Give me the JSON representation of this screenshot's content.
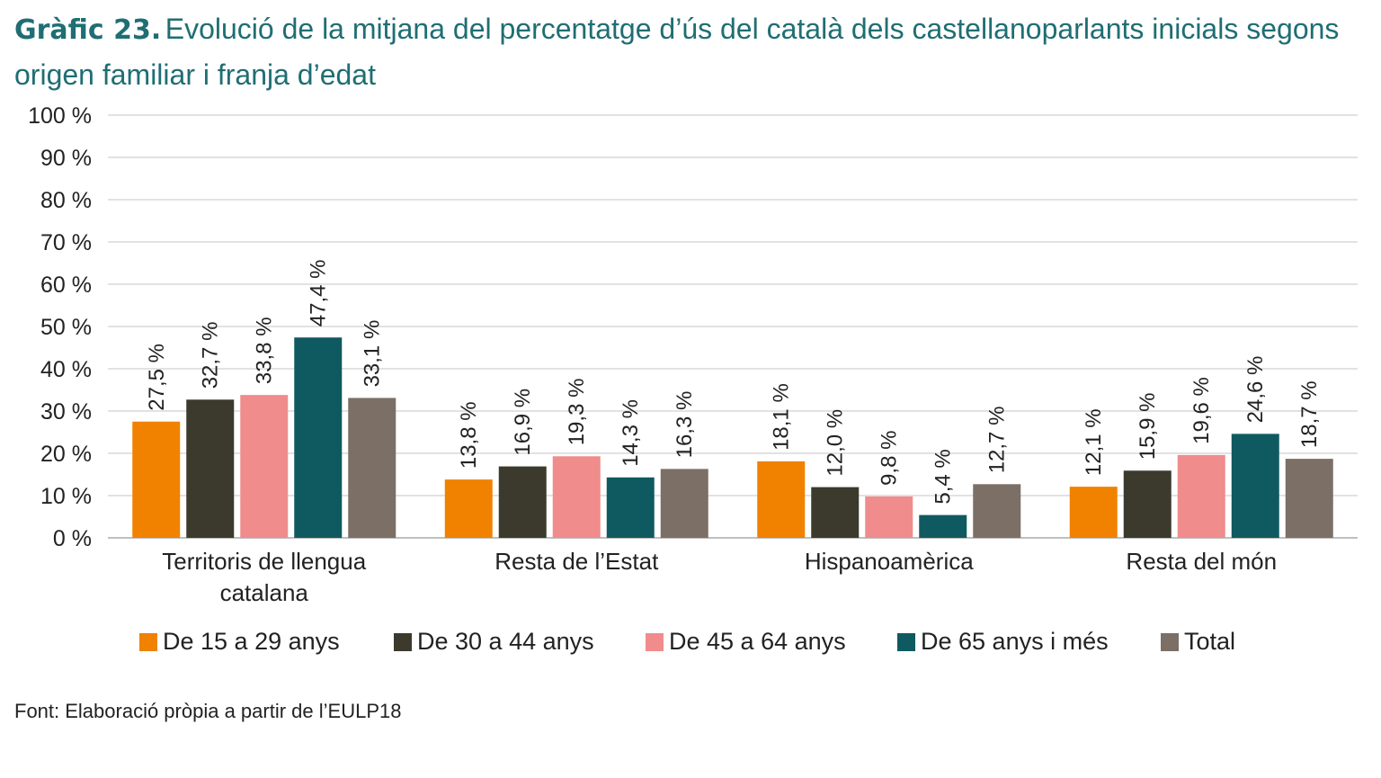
{
  "title": {
    "prefix": "Gràfic 23.",
    "text": "Evolució de la mitjana del percentatge d’ús del català dels castellanoparlants inicials segons origen familiar i franja d’edat"
  },
  "source": "Font: Elaboració pròpia a partir de l’EULP18",
  "chart_data": {
    "type": "bar",
    "categories": [
      [
        "Territoris de llengua",
        "catalana"
      ],
      [
        "Resta de l’Estat"
      ],
      [
        "Hispanoamèrica"
      ],
      [
        "Resta del món"
      ]
    ],
    "series": [
      {
        "name": "De 15 a 29 anys",
        "color": "#f08200",
        "values": [
          27.5,
          13.8,
          18.1,
          12.1
        ],
        "labels": [
          "27,5 %",
          "13,8 %",
          "18,1 %",
          "12,1 %"
        ]
      },
      {
        "name": "De 30 a 44 anys",
        "color": "#3c3a2c",
        "values": [
          32.7,
          16.9,
          12.0,
          15.9
        ],
        "labels": [
          "32,7 %",
          "16,9 %",
          "12,0 %",
          "15,9 %"
        ]
      },
      {
        "name": "De 45 a 64 anys",
        "color": "#f08c8c",
        "values": [
          33.8,
          19.3,
          9.8,
          19.6
        ],
        "labels": [
          "33,8 %",
          "19,3 %",
          "9,8 %",
          "19,6 %"
        ]
      },
      {
        "name": "De 65 anys i més",
        "color": "#0f5a60",
        "values": [
          47.4,
          14.3,
          5.4,
          24.6
        ],
        "labels": [
          "47,4 %",
          "14,3 %",
          "5,4 %",
          "24,6 %"
        ]
      },
      {
        "name": "Total",
        "color": "#7b6f66",
        "values": [
          33.1,
          16.3,
          12.7,
          18.7
        ],
        "labels": [
          "33,1 %",
          "16,3 %",
          "12,7 %",
          "18,7 %"
        ]
      }
    ],
    "ylim": [
      0,
      100
    ],
    "yticks": [
      0,
      10,
      20,
      30,
      40,
      50,
      60,
      70,
      80,
      90,
      100
    ],
    "ytick_labels": [
      "0 %",
      "10 %",
      "20 %",
      "30 %",
      "40 %",
      "50 %",
      "60 %",
      "70 %",
      "80 %",
      "90 %",
      "100 %"
    ],
    "grid": true,
    "legend_position": "bottom"
  }
}
